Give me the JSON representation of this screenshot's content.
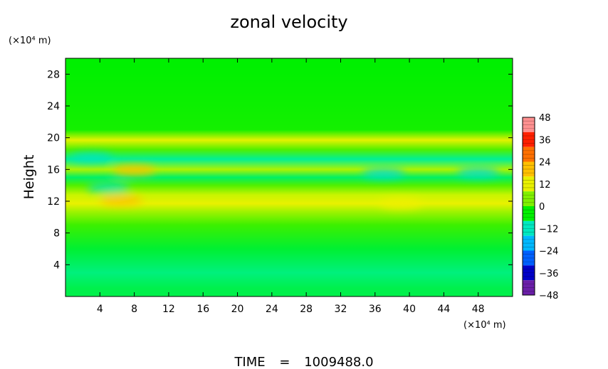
{
  "chart_data": {
    "type": "heatmap",
    "title": "zonal velocity",
    "xlabel": "",
    "ylabel": "Height",
    "x_unit_label": "(×10⁴ m)",
    "y_unit_label": "(×10⁴ m)",
    "xlim": [
      0,
      52
    ],
    "ylim": [
      0,
      30
    ],
    "x_ticks": [
      4,
      8,
      12,
      16,
      20,
      24,
      28,
      32,
      36,
      40,
      44,
      48
    ],
    "y_ticks": [
      4,
      8,
      12,
      16,
      20,
      24,
      28
    ],
    "colorbar": {
      "ticks": [
        48,
        36,
        24,
        12,
        0,
        -12,
        -24,
        -36,
        -48
      ],
      "range": [
        -48,
        48
      ],
      "colors": [
        "#6a1fa8",
        "#0000c8",
        "#0060ff",
        "#00b8ff",
        "#00e8c0",
        "#00f000",
        "#80f000",
        "#e8f000",
        "#ffc000",
        "#ff7000",
        "#ff2000",
        "#ff9090"
      ]
    },
    "field_description_rows": [
      {
        "height": 29,
        "value": 0
      },
      {
        "height": 21,
        "value": 1
      },
      {
        "height": 19.7,
        "value": 16
      },
      {
        "height": 18.5,
        "value": 4
      },
      {
        "height": 17.3,
        "value": -6
      },
      {
        "height": 16,
        "value": 10
      },
      {
        "height": 15,
        "value": -4
      },
      {
        "height": 14,
        "value": 4
      },
      {
        "height": 12.8,
        "value": 12
      },
      {
        "height": 11.7,
        "value": 17
      },
      {
        "height": 10.7,
        "value": 9
      },
      {
        "height": 9,
        "value": 3
      },
      {
        "height": 6,
        "value": -2
      },
      {
        "height": 3,
        "value": -5
      },
      {
        "height": 1,
        "value": -3
      }
    ],
    "hotspots": [
      {
        "x": 6.5,
        "y": 12.1,
        "value": 24
      },
      {
        "x": 8,
        "y": 15.9,
        "value": 24
      },
      {
        "x": 39,
        "y": 11.7,
        "value": 18
      },
      {
        "x": 37,
        "y": 15.5,
        "value": -12
      },
      {
        "x": 48,
        "y": 15.6,
        "value": -12
      },
      {
        "x": 5,
        "y": 13.7,
        "value": -10
      },
      {
        "x": 3,
        "y": 17.5,
        "value": -10
      }
    ]
  },
  "footer": {
    "time_label": "TIME",
    "time_equals": "=",
    "time_value": "1009488.0"
  }
}
